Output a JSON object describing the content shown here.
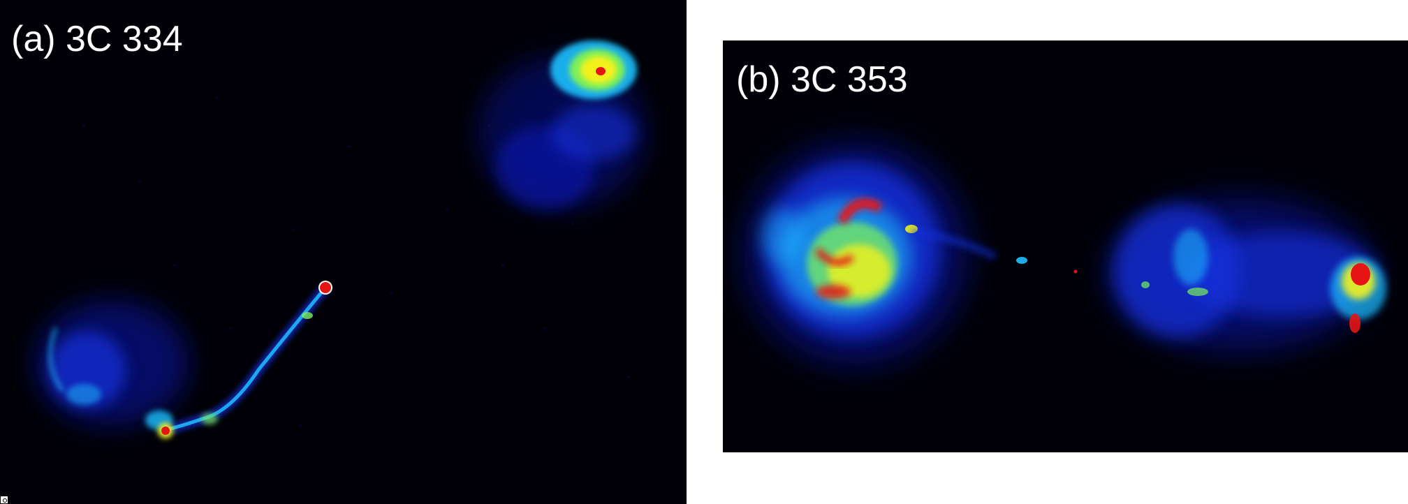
{
  "panels": [
    {
      "label": "(a) 3C 334",
      "subject": "radio galaxy false-color map"
    },
    {
      "label": "(b) 3C 353",
      "subject": "radio galaxy false-color map"
    }
  ],
  "colormap": {
    "background": "#000006",
    "low": "#0a1ad8",
    "mid": "#1ec0ff",
    "high": "#f2f21a",
    "peak": "#e61414"
  }
}
